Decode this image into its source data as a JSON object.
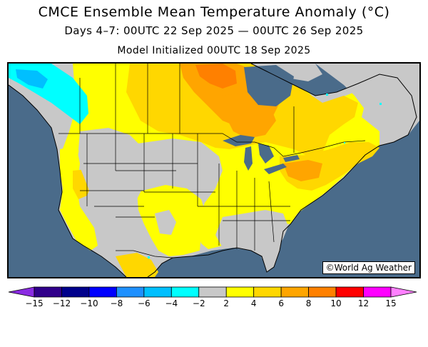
{
  "title": "CMCE Ensemble Mean Temperature Anomaly (°C)",
  "subtitle": "Days 4–7: 00UTC 22 Sep 2025 — 00UTC 26 Sep 2025",
  "init": "Model Initialized 00UTC 18 Sep 2025",
  "credit": "©World Ag Weather",
  "colors": {
    "ocean": "#4a6b8a",
    "neutral": "#c8c8c8",
    "yellow": "#ffff00",
    "gold": "#ffd700",
    "orange": "#ffa500",
    "dark_orange": "#ff8000",
    "cyan": "#00ffff",
    "light_blue": "#00bfff"
  },
  "colorbar": {
    "ticks": [
      "−15",
      "−12",
      "−10",
      "−8",
      "−6",
      "−4",
      "−2",
      "2",
      "4",
      "6",
      "8",
      "10",
      "12",
      "15"
    ],
    "colors": [
      "#8a2be2",
      "#30008a",
      "#00008b",
      "#0000ff",
      "#1e90ff",
      "#00bfff",
      "#00ffff",
      "#c8c8c8",
      "#ffff00",
      "#ffd700",
      "#ffa500",
      "#ff8000",
      "#ff0000",
      "#ff00ff",
      "#ff80ff"
    ]
  }
}
